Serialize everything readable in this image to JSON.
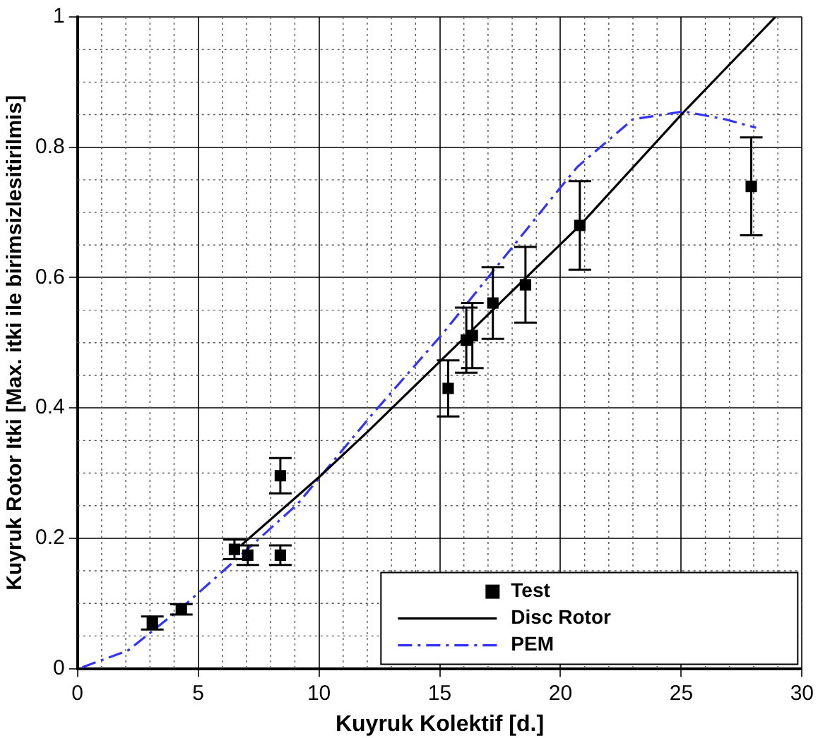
{
  "chart_data": {
    "type": "scatter",
    "xlabel": "Kuyruk Kolektif [d.]",
    "ylabel": "Kuyruk Rotor Itki [Max. itki ile birimsizlesitirilmis]",
    "xlim": [
      0,
      30
    ],
    "xticks": [
      0,
      5,
      10,
      15,
      20,
      25,
      30
    ],
    "ylim": [
      0,
      1
    ],
    "yticks": [
      0,
      0.2,
      0.4,
      0.6,
      0.8,
      1
    ],
    "grid": true,
    "legend": "bottom right",
    "series": [
      {
        "name": "Test",
        "color": "#000000",
        "marker": "square",
        "x": [
          3.1,
          4.3,
          6.5,
          7.05,
          8.4,
          8.4,
          15.35,
          16.1,
          16.35,
          17.2,
          18.55,
          20.8,
          27.9
        ],
        "values": [
          0.07,
          0.091,
          0.183,
          0.174,
          0.174,
          0.296,
          0.43,
          0.504,
          0.511,
          0.561,
          0.589,
          0.68,
          0.74
        ],
        "errors": [
          0.01,
          0.008,
          0.015,
          0.015,
          0.015,
          0.027,
          0.043,
          0.05,
          0.05,
          0.055,
          0.058,
          0.068,
          0.075
        ]
      },
      {
        "name": "Disc Rotor",
        "type": "line",
        "color": "#000000",
        "marker": "none",
        "line_style": "solid",
        "x": [
          6.8,
          10.1,
          12,
          20.8,
          25.1,
          28.9
        ],
        "values": [
          0.19,
          0.297,
          0.363,
          0.68,
          0.854,
          1.0
        ]
      },
      {
        "name": "PEM",
        "type": "line",
        "color": "#3333ff",
        "marker": "none",
        "line_style": "dashed",
        "x": [
          0.2,
          2.1,
          4.3,
          6.1,
          9.1,
          12.2,
          15.1,
          19.6,
          20.7,
          23,
          25.1,
          26.8,
          28.1
        ],
        "values": [
          0.002,
          0.028,
          0.093,
          0.152,
          0.252,
          0.39,
          0.513,
          0.72,
          0.77,
          0.843,
          0.855,
          0.843,
          0.83
        ]
      }
    ]
  }
}
